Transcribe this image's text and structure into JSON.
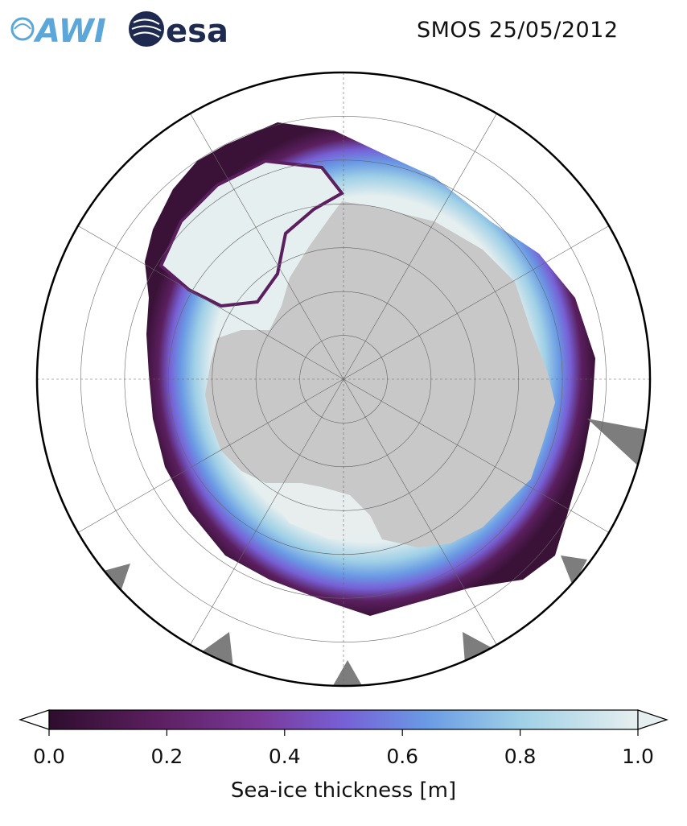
{
  "header": {
    "title": "SMOS 25/05/2012",
    "logos": [
      {
        "name": "awi-logo",
        "text": "AWI",
        "color": "#5ba7d9"
      },
      {
        "name": "esa-logo",
        "text": "esa",
        "color": "#1e2a4f"
      }
    ]
  },
  "map": {
    "projection": "south polar stereographic",
    "land_color": "#c8c8c8",
    "ice_free_color": "#ffffff",
    "no_data_color": "#7d7d7d",
    "graticule": "on",
    "meridian_lines": 12,
    "parallel_circles": 6
  },
  "colorbar": {
    "label": "Sea-ice thickness [m]",
    "min": 0.0,
    "max": 1.0,
    "extend": "both",
    "ticks": [
      "0.0",
      "0.2",
      "0.4",
      "0.6",
      "0.8",
      "1.0"
    ],
    "colors": [
      "#2e0d2e",
      "#5b1f5f",
      "#7a3a9a",
      "#7760d6",
      "#6a9ae4",
      "#9fd0e6",
      "#e6efef"
    ]
  }
}
